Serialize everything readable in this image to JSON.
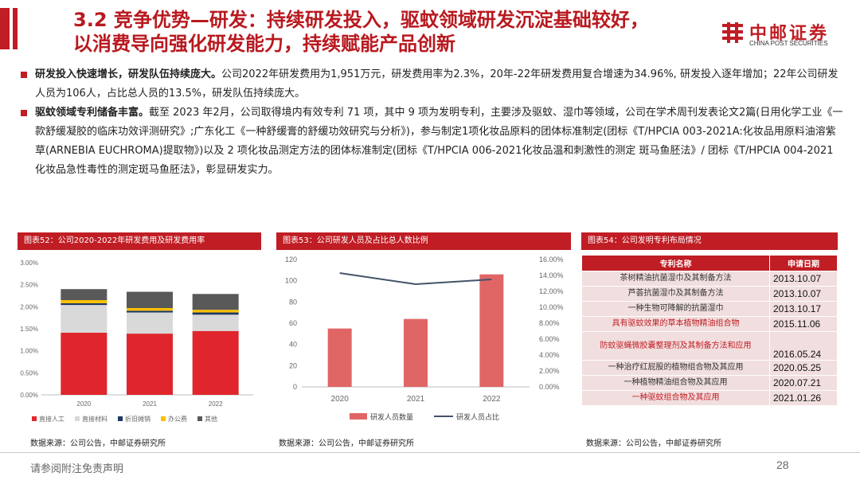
{
  "header": {
    "title_line1": "3.2 竞争优势—研发：持续研发投入，驱蚊领域研发沉淀基础较好，",
    "title_line2": "以消费导向强化研发能力，持续赋能产品创新",
    "logo_cn": "中邮证券",
    "logo_en": "CHINA POST SECURITIES"
  },
  "bullets": [
    {
      "bold": "研发投入快速增长，研发队伍持续庞大。",
      "text": "公司2022年研发费用为1,951万元，研发费用率为2.3%，20年-22年研发费用复合增速为34.96%, 研发投入逐年增加；22年公司研发人员为106人，占比总人员的13.5%，研发队伍持续庞大。"
    },
    {
      "bold": "驱蚊领域专利储备丰富。",
      "text": "截至 2023 年2月，公司取得境内有效专利 71 项，其中 9 项为发明专利，主要涉及驱蚊、湿巾等领域，公司在学术周刊发表论文2篇(日用化学工业《一款舒缓凝胶的临床功效评测研究》;广东化工《一种舒缓膏的舒缓功效研究与分析》)，参与制定1项化妆品原料的团体标准制定(团标《T/HPCIA 003-2021A:化妆品用原料油溶紫草(ARNEBIA EUCHROMA)提取物》)以及 2 项化妆品测定方法的团体标准制定(团标《T/HPCIA 006-2021化妆品温和刺激性的测定 斑马鱼胚法》/ 团标《T/HPCIA 004-2021 化妆品急性毒性的测定斑马鱼胚法》，彰显研发实力。"
    }
  ],
  "panels": {
    "p1_title": "图表52：公司2020-2022年研发费用及研发费用率",
    "p2_title": "图表53：公司研发人员及占比总人数比例",
    "p3_title": "图表54：公司发明专利布局情况",
    "source": "数据来源：公司公告，中邮证券研究所"
  },
  "chart_data": [
    {
      "type": "bar",
      "stacked": true,
      "categories": [
        "2020",
        "2021",
        "2022"
      ],
      "series": [
        {
          "name": "直接人工",
          "values": [
            1.41,
            1.39,
            1.45
          ],
          "color": "#e0262c"
        },
        {
          "name": "直接材料",
          "values": [
            0.63,
            0.48,
            0.37
          ],
          "color": "#d9d9d9"
        },
        {
          "name": "折旧摊销",
          "values": [
            0.04,
            0.04,
            0.05
          ],
          "color": "#1f3864"
        },
        {
          "name": "办公费",
          "values": [
            0.07,
            0.06,
            0.06
          ],
          "color": "#ffc000"
        },
        {
          "name": "其他",
          "values": [
            0.25,
            0.37,
            0.36
          ],
          "color": "#595959"
        }
      ],
      "yticks": [
        "0.00%",
        "0.50%",
        "1.00%",
        "1.50%",
        "2.00%",
        "2.50%",
        "3.00%"
      ],
      "ylim": [
        0,
        3
      ]
    },
    {
      "type": "bar+line",
      "categories": [
        "2020",
        "2021",
        "2022"
      ],
      "series": [
        {
          "name": "研发人员数量",
          "type": "bar",
          "values": [
            55,
            64,
            106
          ],
          "color": "#e06666",
          "axis": "left"
        },
        {
          "name": "研发人员占比",
          "type": "line",
          "values": [
            14.3,
            12.9,
            13.5
          ],
          "color": "#44546a",
          "axis": "right"
        }
      ],
      "yticks_left": [
        "0",
        "20",
        "40",
        "60",
        "80",
        "100",
        "120"
      ],
      "ylim_left": [
        0,
        120
      ],
      "yticks_right": [
        "0.00%",
        "2.00%",
        "4.00%",
        "6.00%",
        "8.00%",
        "10.00%",
        "12.00%",
        "14.00%",
        "16.00%"
      ],
      "ylim_right": [
        0,
        16
      ]
    },
    {
      "type": "table",
      "columns": [
        "专利名称",
        "申请日期"
      ],
      "rows": [
        {
          "name": "茶树精油抗菌湿巾及其制备方法",
          "date": "2013.10.07",
          "red": false
        },
        {
          "name": "芦荟抗菌湿巾及其制备方法",
          "date": "2013.10.07",
          "red": false
        },
        {
          "name": "一种生物可降解的抗菌湿巾",
          "date": "2013.10.17",
          "red": false
        },
        {
          "name": "具有驱蚊效果的草本植物精油组合物",
          "date": "2015.11.06",
          "red": true
        },
        {
          "name": "防蚊驱蝇微胶囊整理剂及其制备方法和应用",
          "date": "2016.05.24",
          "red": true
        },
        {
          "name": "一种治疗红屁股的植物组合物及其应用",
          "date": "2020.05.25",
          "red": false
        },
        {
          "name": "一种植物精油组合物及其应用",
          "date": "2020.07.21",
          "red": false
        },
        {
          "name": "一种驱蚊组合物及其应用",
          "date": "2021.01.26",
          "red": true
        }
      ]
    }
  ],
  "footer": {
    "disclaimer": "请参阅附注免责声明",
    "page": "28"
  }
}
